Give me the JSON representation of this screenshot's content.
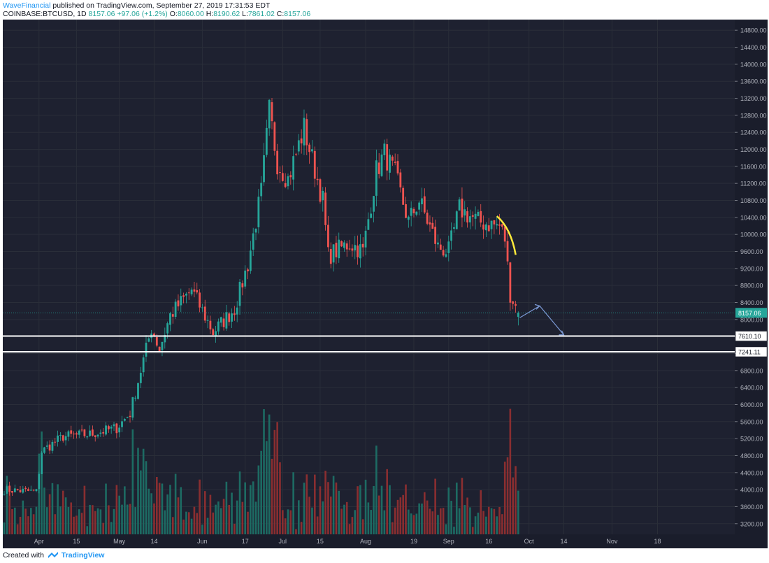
{
  "header": {
    "author": "WaveFinancial",
    "published_text": "published on TradingView.com, September 27, 2019 17:31:53 EDT",
    "symbol_line": "COINBASE:BTCUSD, 1D",
    "last": "8157.06",
    "change": "+97.06 (+1.2%)",
    "open_label": "O:",
    "open": "8060.00",
    "high_label": "H:",
    "high": "8190.62",
    "low_label": "L:",
    "low": "7861.02",
    "close_label": "C:",
    "close": "8157.06"
  },
  "footer": {
    "created_with": "Created with",
    "brand": "TradingView"
  },
  "colors": {
    "background": "#1e2130",
    "grid": "#2a2e39",
    "up": "#26a69a",
    "down": "#ef5350",
    "vol_up": "#1d6b63",
    "vol_down": "#8a2e30",
    "yellow": "#ffeb3b",
    "arrow": "#7c9ad6",
    "level": "#ffffff"
  },
  "chart_data": {
    "type": "candlestick",
    "symbol": "COINBASE:BTCUSD",
    "interval": "1D",
    "price_ticks": [
      "14800.00",
      "14400.00",
      "14000.00",
      "13600.00",
      "13200.00",
      "12800.00",
      "12400.00",
      "12000.00",
      "11600.00",
      "11200.00",
      "10800.00",
      "10400.00",
      "10000.00",
      "9600.00",
      "9200.00",
      "8800.00",
      "8400.00",
      "8000.00",
      "7600.00",
      "7200.00",
      "6800.00",
      "6400.00",
      "6000.00",
      "5600.00",
      "5200.00",
      "4800.00",
      "4400.00",
      "4000.00",
      "3600.00",
      "3200.00"
    ],
    "ylim": [
      2950,
      15050
    ],
    "x_ticks": [
      "Apr",
      "15",
      "May",
      "14",
      "Jun",
      "17",
      "Jul",
      "15",
      "Aug",
      "19",
      "Sep",
      "16",
      "Oct",
      "14",
      "Nov",
      "18"
    ],
    "last_price_label": "8157.06",
    "levels": [
      {
        "label": "7610.10",
        "value": 7610.1
      },
      {
        "label": "7241.11",
        "value": 7241.11
      }
    ],
    "keypoints": [
      {
        "date": "2019-03-19",
        "price": 4000
      },
      {
        "date": "2019-03-31",
        "price": 3950
      },
      {
        "date": "2019-04-02",
        "price": 4900
      },
      {
        "date": "2019-04-10",
        "price": 5250
      },
      {
        "date": "2019-04-20",
        "price": 5300
      },
      {
        "date": "2019-04-30",
        "price": 5450
      },
      {
        "date": "2019-05-05",
        "price": 5800
      },
      {
        "date": "2019-05-13",
        "price": 7800
      },
      {
        "date": "2019-05-16",
        "price": 7300
      },
      {
        "date": "2019-05-20",
        "price": 8100
      },
      {
        "date": "2019-05-28",
        "price": 8700
      },
      {
        "date": "2019-06-05",
        "price": 7700
      },
      {
        "date": "2019-06-13",
        "price": 8250
      },
      {
        "date": "2019-06-18",
        "price": 9300
      },
      {
        "date": "2019-06-23",
        "price": 11000
      },
      {
        "date": "2019-06-26",
        "price": 12900
      },
      {
        "date": "2019-06-29",
        "price": 11700
      },
      {
        "date": "2019-07-03",
        "price": 11300
      },
      {
        "date": "2019-07-09",
        "price": 12500
      },
      {
        "date": "2019-07-16",
        "price": 10800
      },
      {
        "date": "2019-07-18",
        "price": 9500
      },
      {
        "date": "2019-07-26",
        "price": 9800
      },
      {
        "date": "2019-07-31",
        "price": 9600
      },
      {
        "date": "2019-08-05",
        "price": 11500
      },
      {
        "date": "2019-08-08",
        "price": 11900
      },
      {
        "date": "2019-08-12",
        "price": 11400
      },
      {
        "date": "2019-08-17",
        "price": 10300
      },
      {
        "date": "2019-08-21",
        "price": 10800
      },
      {
        "date": "2019-08-28",
        "price": 9700
      },
      {
        "date": "2019-09-01",
        "price": 9600
      },
      {
        "date": "2019-09-05",
        "price": 10600
      },
      {
        "date": "2019-09-12",
        "price": 10300
      },
      {
        "date": "2019-09-20",
        "price": 10200
      },
      {
        "date": "2019-09-22",
        "price": 9900
      },
      {
        "date": "2019-09-24",
        "price": 8600
      },
      {
        "date": "2019-09-27",
        "price": 8157
      }
    ],
    "volume_axis": {
      "min": 2950,
      "max": 6000
    }
  }
}
